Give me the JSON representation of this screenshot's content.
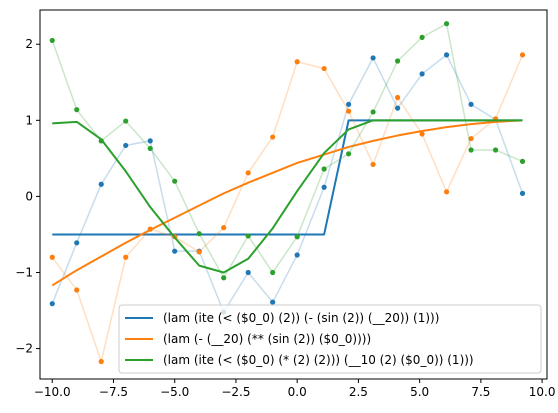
{
  "chart_data": {
    "type": "line",
    "title": "",
    "xlabel": "",
    "ylabel": "",
    "xlim": [
      -10.5,
      10.2
    ],
    "ylim": [
      -2.4,
      2.45
    ],
    "grid": false,
    "legend_position": "lower-right",
    "x_ticks": [
      -10.0,
      -7.5,
      -5.0,
      -2.5,
      0.0,
      2.5,
      5.0,
      7.5,
      10.0
    ],
    "x_tick_labels": [
      "−10.0",
      "−7.5",
      "−5.0",
      "−2.5",
      "0.0",
      "2.5",
      "5.0",
      "7.5",
      "10.0"
    ],
    "y_ticks": [
      -2,
      -1,
      0,
      1,
      2
    ],
    "y_tick_labels": [
      "−2",
      "−1",
      "0",
      "1",
      "2"
    ],
    "x": [
      -10.0,
      -9.0,
      -8.0,
      -7.0,
      -6.0,
      -5.0,
      -4.0,
      -3.0,
      -2.0,
      -1.0,
      0.0,
      1.0,
      2.0,
      3.0,
      4.0,
      5.0,
      6.0,
      7.0,
      8.0,
      9.0
    ],
    "series": [
      {
        "name": "(lam (ite (< ($0_0) (2)) (- (sin (2)) (__20)) (1)))",
        "color": "#1f77b4",
        "fit_x": [
          -10.0,
          -9.0,
          -8.0,
          -7.0,
          -6.0,
          -5.0,
          -4.0,
          -3.0,
          -2.0,
          -1.0,
          0.0,
          1.1,
          2.1,
          3.1,
          4.1,
          5.1,
          6.1,
          7.1,
          8.1,
          9.2
        ],
        "fit_y": [
          -0.5,
          -0.5,
          -0.5,
          -0.5,
          -0.5,
          -0.5,
          -0.5,
          -0.5,
          -0.5,
          -0.5,
          -0.5,
          -0.5,
          1.0,
          1.0,
          1.0,
          1.0,
          1.0,
          1.0,
          1.0,
          1.0
        ],
        "points_x": [
          -10.0,
          -9.0,
          -8.0,
          -7.0,
          -6.0,
          -5.0,
          -4.0,
          -3.0,
          -2.0,
          -1.0,
          0.0,
          1.1,
          2.1,
          3.1,
          4.1,
          5.1,
          6.1,
          7.1,
          8.1,
          9.2
        ],
        "points_y": [
          -1.41,
          -0.61,
          0.16,
          0.67,
          0.73,
          -0.72,
          -0.72,
          -1.52,
          -1.0,
          -1.39,
          -0.77,
          0.12,
          1.21,
          1.82,
          1.16,
          1.61,
          1.86,
          1.21,
          1.01,
          0.04
        ]
      },
      {
        "name": "(lam (- (__20) (** (sin (2)) ($0_0))))",
        "color": "#ff7f0e",
        "fit_x": [
          -10.0,
          -9.0,
          -8.0,
          -7.0,
          -6.0,
          -5.0,
          -4.0,
          -3.0,
          -2.0,
          -1.0,
          0.0,
          1.1,
          2.1,
          3.1,
          4.1,
          5.1,
          6.1,
          7.1,
          8.1,
          9.2
        ],
        "fit_y": [
          -1.17,
          -0.97,
          -0.79,
          -0.61,
          -0.44,
          -0.28,
          -0.12,
          0.04,
          0.18,
          0.31,
          0.44,
          0.55,
          0.65,
          0.73,
          0.8,
          0.86,
          0.91,
          0.95,
          0.98,
          1.0
        ],
        "points_x": [
          -10.0,
          -9.0,
          -8.0,
          -7.0,
          -6.0,
          -5.0,
          -4.0,
          -3.0,
          -2.0,
          -1.0,
          0.0,
          1.1,
          2.1,
          3.1,
          4.1,
          5.1,
          6.1,
          7.1,
          8.1,
          9.2
        ],
        "points_y": [
          -0.8,
          -1.23,
          -2.17,
          -0.8,
          -0.43,
          -0.53,
          -0.73,
          -0.41,
          0.31,
          0.78,
          1.77,
          1.68,
          1.12,
          0.42,
          1.3,
          0.82,
          0.06,
          0.76,
          1.02,
          1.86
        ]
      },
      {
        "name": "(lam (ite (< ($0_0) (* (2) (2))) (__10 (2) ($0_0)) (1)))",
        "color": "#2ca02c",
        "fit_x": [
          -10.0,
          -9.0,
          -8.0,
          -7.0,
          -6.0,
          -5.0,
          -4.0,
          -3.0,
          -2.0,
          -1.0,
          0.0,
          1.1,
          2.1,
          3.1,
          4.1,
          5.1,
          6.1,
          7.1,
          8.1,
          9.2
        ],
        "fit_y": [
          0.96,
          0.98,
          0.75,
          0.33,
          -0.14,
          -0.54,
          -0.91,
          -1.0,
          -0.82,
          -0.42,
          0.07,
          0.57,
          0.88,
          1.0,
          1.0,
          1.0,
          1.0,
          1.0,
          1.0,
          1.0
        ],
        "points_x": [
          -10.0,
          -9.0,
          -8.0,
          -7.0,
          -6.0,
          -5.0,
          -4.0,
          -3.0,
          -2.0,
          -1.0,
          0.0,
          1.1,
          2.1,
          3.1,
          4.1,
          5.1,
          6.1,
          7.1,
          8.1,
          9.2
        ],
        "points_y": [
          2.05,
          1.14,
          0.73,
          0.99,
          0.63,
          0.2,
          -0.49,
          -1.07,
          -0.52,
          -1.0,
          -0.53,
          0.36,
          0.56,
          1.11,
          1.78,
          2.09,
          2.27,
          0.61,
          0.61,
          0.46
        ]
      }
    ]
  }
}
